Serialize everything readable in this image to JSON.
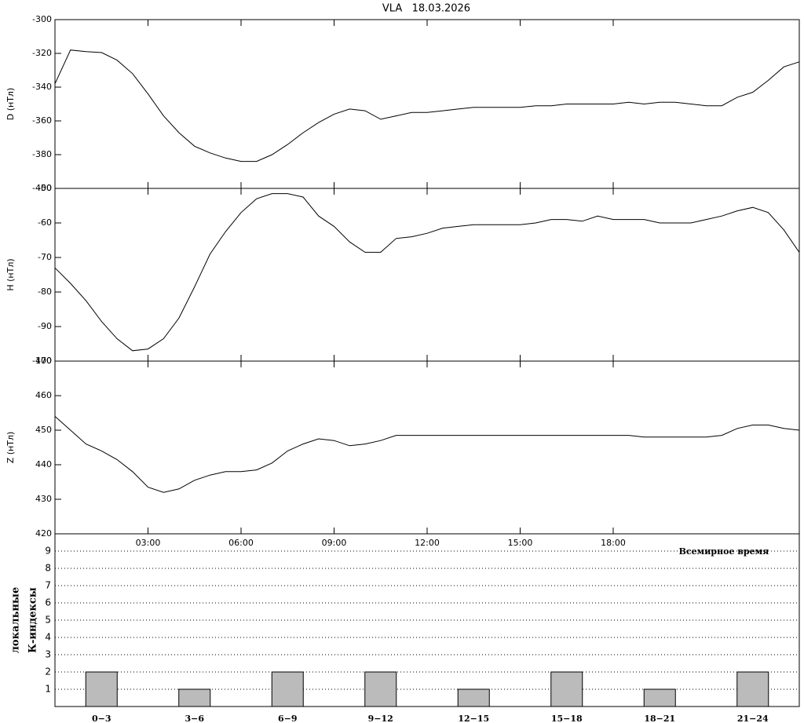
{
  "chart_data": [
    {
      "type": "line",
      "title": "VLA   18.03.2026",
      "y_label": "D (нТл)",
      "color": "#000000",
      "x": [
        0,
        0.5,
        1,
        1.5,
        2,
        2.5,
        3,
        3.5,
        4,
        4.5,
        5,
        5.5,
        6,
        6.5,
        7,
        7.5,
        8,
        8.5,
        9,
        9.5,
        10,
        10.5,
        11,
        11.5,
        12,
        12.5,
        13,
        13.5,
        14,
        14.5,
        15,
        15.5,
        16,
        16.5,
        17,
        17.5,
        18,
        18.5,
        19,
        19.5,
        20,
        20.5,
        21,
        21.5,
        22,
        22.5,
        23,
        23.5,
        24
      ],
      "values": [
        -338,
        -318,
        -319,
        -319.5,
        -324,
        -332,
        -344,
        -357,
        -367,
        -375,
        -379,
        -382,
        -384,
        -384,
        -380,
        -374,
        -367,
        -361,
        -356,
        -353,
        -354,
        -359,
        -357,
        -355,
        -355,
        -354,
        -353,
        -352,
        -352,
        -352,
        -352,
        -351,
        -351,
        -350,
        -350,
        -350,
        -350,
        -349,
        -350,
        -349,
        -349,
        -350,
        -351,
        -351,
        -346,
        -343,
        -336,
        -328,
        -325
      ],
      "xlim": [
        0,
        24
      ],
      "ylim": [
        -400,
        -300
      ],
      "yticks": [
        -300,
        -320,
        -340,
        -360,
        -380,
        -400
      ]
    },
    {
      "type": "line",
      "y_label": "H (нТл)",
      "color": "#000000",
      "x": [
        0,
        0.5,
        1,
        1.5,
        2,
        2.5,
        3,
        3.5,
        4,
        4.5,
        5,
        5.5,
        6,
        6.5,
        7,
        7.5,
        8,
        8.5,
        9,
        9.5,
        10,
        10.5,
        11,
        11.5,
        12,
        12.5,
        13,
        13.5,
        14,
        14.5,
        15,
        15.5,
        16,
        16.5,
        17,
        17.5,
        18,
        18.5,
        19,
        19.5,
        20,
        20.5,
        21,
        21.5,
        22,
        22.5,
        23,
        23.5,
        24
      ],
      "values": [
        -73,
        -77.5,
        -82.5,
        -88.5,
        -93.5,
        -97,
        -96.5,
        -93.5,
        -87.5,
        -78.5,
        -69,
        -62.5,
        -57,
        -53,
        -51.5,
        -51.5,
        -52.5,
        -58,
        -61,
        -65.5,
        -68.5,
        -68.5,
        -64.5,
        -64,
        -63,
        -61.5,
        -61,
        -60.5,
        -60.5,
        -60.5,
        -60.5,
        -60,
        -59,
        -59,
        -59.5,
        -58,
        -59,
        -59,
        -59,
        -60,
        -60,
        -60,
        -59,
        -58,
        -56.5,
        -55.5,
        -57,
        -62,
        -68.5
      ],
      "xlim": [
        0,
        24
      ],
      "ylim": [
        -100,
        -50
      ],
      "yticks": [
        -50,
        -60,
        -70,
        -80,
        -90,
        -100
      ]
    },
    {
      "type": "line",
      "y_label": "Z (нТл)",
      "color": "#000000",
      "x_label": "Всемирное время",
      "x": [
        0,
        0.5,
        1,
        1.5,
        2,
        2.5,
        3,
        3.5,
        4,
        4.5,
        5,
        5.5,
        6,
        6.5,
        7,
        7.5,
        8,
        8.5,
        9,
        9.5,
        10,
        10.5,
        11,
        11.5,
        12,
        12.5,
        13,
        13.5,
        14,
        14.5,
        15,
        15.5,
        16,
        16.5,
        17,
        17.5,
        18,
        18.5,
        19,
        19.5,
        20,
        20.5,
        21,
        21.5,
        22,
        22.5,
        23,
        23.5,
        24
      ],
      "values": [
        454,
        450,
        446,
        444,
        441.5,
        438,
        433.5,
        432,
        433,
        435.5,
        437,
        438,
        438,
        438.5,
        440.5,
        444,
        446,
        447.5,
        447,
        445.5,
        446,
        447,
        448.5,
        448.5,
        448.5,
        448.5,
        448.5,
        448.5,
        448.5,
        448.5,
        448.5,
        448.5,
        448.5,
        448.5,
        448.5,
        448.5,
        448.5,
        448.5,
        448,
        448,
        448,
        448,
        448,
        448.5,
        450.5,
        451.5,
        451.5,
        450.5,
        450
      ],
      "xlim": [
        0,
        24
      ],
      "ylim": [
        420,
        470
      ],
      "yticks": [
        420,
        430,
        440,
        450,
        460,
        470
      ],
      "xticks": [
        {
          "value": 3,
          "label": "03:00"
        },
        {
          "value": 6,
          "label": "06:00"
        },
        {
          "value": 9,
          "label": "09:00"
        },
        {
          "value": 12,
          "label": "12:00"
        },
        {
          "value": 15,
          "label": "15:00"
        },
        {
          "value": 18,
          "label": "18:00"
        }
      ]
    },
    {
      "type": "bar",
      "y_label": [
        "локальные",
        "К-индексы"
      ],
      "color": "#bbbbbb",
      "grid": true,
      "categories": [
        "0−3",
        "3−6",
        "6−9",
        "9−12",
        "12−15",
        "15−18",
        "18−21",
        "21−24"
      ],
      "values": [
        2,
        1,
        2,
        2,
        1,
        2,
        1,
        2
      ],
      "ylim": [
        0,
        10
      ],
      "yticks": [
        1,
        2,
        3,
        4,
        5,
        6,
        7,
        8,
        9
      ]
    }
  ]
}
